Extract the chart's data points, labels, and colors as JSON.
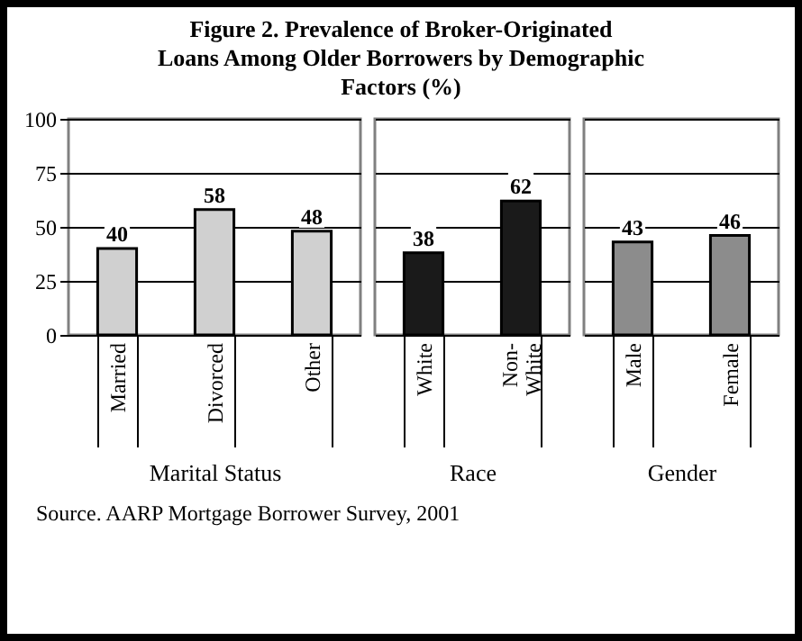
{
  "chart_data": [
    {
      "type": "bar",
      "title": "Figure 2.   Prevalence of Broker-Originated Loans Among Older Borrowers by Demographic Factors (%)",
      "annotations": [
        "Source. AARP Mortgage Borrower Survey, 2001"
      ],
      "xlabel": "Marital Status",
      "categories": [
        "Married",
        "Divorced",
        "Other"
      ],
      "values": [
        40,
        58,
        48
      ],
      "colors": [
        "#d0d0d0",
        "#d0d0d0",
        "#d0d0d0"
      ],
      "ylim": [
        0,
        100
      ],
      "yticks": [
        0,
        25,
        50,
        75,
        100
      ],
      "grid": "y",
      "data_labels": true
    },
    {
      "type": "bar",
      "xlabel": "Race",
      "categories": [
        "White",
        "Non-White"
      ],
      "values": [
        38,
        62
      ],
      "colors": [
        "#1a1a1a",
        "#1a1a1a"
      ],
      "ylim": [
        0,
        100
      ],
      "yticks": [
        0,
        25,
        50,
        75,
        100
      ],
      "grid": "y",
      "data_labels": true,
      "tick_labels": "x"
    },
    {
      "type": "bar",
      "xlabel": "Gender",
      "categories": [
        "Male",
        "Female"
      ],
      "values": [
        43,
        46
      ],
      "colors": [
        "#8c8c8c",
        "#8c8c8c"
      ],
      "ylim": [
        0,
        100
      ],
      "yticks": [
        0,
        25,
        50,
        75,
        100
      ],
      "grid": "y",
      "data_labels": true,
      "tick_labels": "x"
    }
  ]
}
